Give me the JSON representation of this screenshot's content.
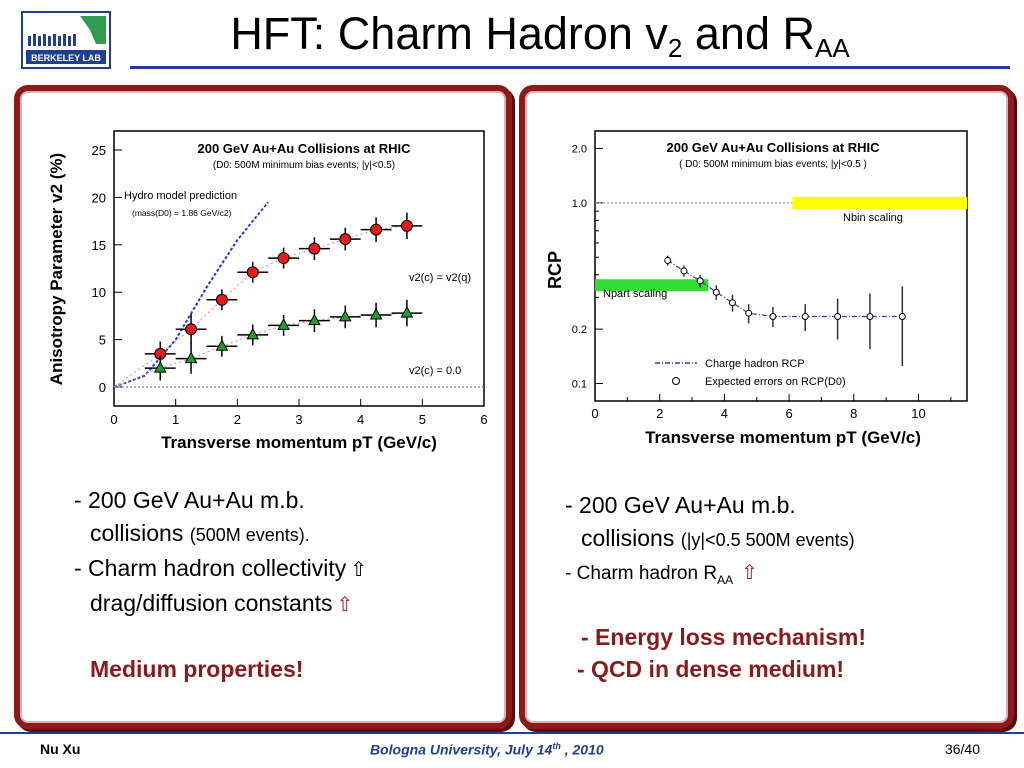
{
  "header": {
    "logo_text": "BERKELEY LAB",
    "title_main": "HFT: Charm Hadron v",
    "title_sub1": "2",
    "title_mid": " and R",
    "title_sub2": "AA"
  },
  "left_panel": {
    "chart_data": {
      "type": "scatter",
      "title": "200 GeV Au+Au Collisions at RHIC",
      "subtitle": "(D0: 500M minimum bias events; |y|<0.5)",
      "xlabel": "Transverse momentum pT (GeV/c)",
      "ylabel": "Anisotropy Parameter v2 (%)",
      "xlim": [
        0,
        6
      ],
      "ylim": [
        -2,
        27
      ],
      "xticks": [
        "0",
        "1",
        "2",
        "3",
        "4",
        "5",
        "6"
      ],
      "yticks": [
        "0",
        "5",
        "10",
        "15",
        "20",
        "25"
      ],
      "annotations": [
        "Hydro model prediction",
        "(mass(D0) = 1.86 GeV/c2)",
        "v2(c) = v2(q)",
        "v2(c) = 0.0"
      ],
      "series": [
        {
          "name": "v2(c) = v2(q)",
          "marker": "circle",
          "color": "#e41a1c",
          "x": [
            0.75,
            1.25,
            1.75,
            2.25,
            2.75,
            3.25,
            3.75,
            4.25,
            4.75
          ],
          "y": [
            3.5,
            6.1,
            9.2,
            12.1,
            13.6,
            14.6,
            15.6,
            16.6,
            17.0
          ],
          "err": [
            1.3,
            1.6,
            1.1,
            1.1,
            1.1,
            1.2,
            1.2,
            1.3,
            1.4
          ]
        },
        {
          "name": "v2(c) = 0.0",
          "marker": "triangle",
          "color": "#1aa12c",
          "x": [
            0.75,
            1.25,
            1.75,
            2.25,
            2.75,
            3.25,
            3.75,
            4.25,
            4.75
          ],
          "y": [
            2.0,
            3.0,
            4.3,
            5.5,
            6.5,
            7.0,
            7.4,
            7.6,
            7.8
          ],
          "err": [
            1.3,
            1.6,
            1.1,
            1.1,
            1.1,
            1.2,
            1.2,
            1.3,
            1.4
          ]
        }
      ],
      "hydro_curve": {
        "x": [
          0,
          0.5,
          1.0,
          1.5,
          2.0,
          2.5
        ],
        "y": [
          0,
          1.2,
          5.0,
          10.5,
          15.5,
          19.5
        ]
      }
    },
    "bullet1_a": "- 200 GeV Au+Au m.b.",
    "bullet1_b": "collisions",
    "bullet1_small": "(500M events).",
    "bullet2_a": "- Charm hadron collectivity",
    "bullet2_b": "drag/diffusion constants",
    "emphasis": "Medium properties!"
  },
  "right_panel": {
    "chart_data": {
      "type": "scatter",
      "title": "200 GeV Au+Au Collisions at RHIC",
      "subtitle": "( D0: 500M minimum bias events; |y|<0.5 )",
      "xlabel": "Transverse momentum pT (GeV/c)",
      "ylabel": "RCP",
      "scale_y": "log",
      "xlim": [
        0,
        11.5
      ],
      "ylim": [
        0.08,
        2.5
      ],
      "xticks": [
        "0",
        "2",
        "4",
        "6",
        "8",
        "10"
      ],
      "yticks": [
        "0.1",
        "0.2",
        "1.0",
        "2.0"
      ],
      "bands": [
        {
          "label": "Nbin scaling",
          "color": "#ffff00",
          "x": [
            6.1,
            11.5
          ],
          "y": 1.0
        },
        {
          "label": "Npart scaling",
          "color": "#33dd33",
          "x": [
            0,
            3.5
          ],
          "y": 0.35
        }
      ],
      "legend": [
        "Charge hadron RCP",
        "Expected errors on RCP(D0)"
      ],
      "series": [
        {
          "name": "Expected errors on RCP(D0)",
          "marker": "open-circle",
          "x": [
            2.25,
            2.75,
            3.25,
            3.75,
            4.25,
            4.75,
            5.5,
            6.5,
            7.5,
            8.5,
            9.5
          ],
          "y": [
            0.48,
            0.42,
            0.37,
            0.32,
            0.28,
            0.245,
            0.235,
            0.235,
            0.235,
            0.235,
            0.235
          ],
          "err": [
            0.03,
            0.03,
            0.03,
            0.03,
            0.03,
            0.03,
            0.03,
            0.04,
            0.06,
            0.08,
            0.11
          ]
        },
        {
          "name": "Charge hadron RCP",
          "marker": "line",
          "x": [
            2.25,
            2.75,
            3.25,
            3.75,
            4.25,
            4.75,
            5.5,
            6.5,
            7.5,
            8.5,
            9.5
          ],
          "y": [
            0.48,
            0.42,
            0.37,
            0.32,
            0.28,
            0.245,
            0.235,
            0.235,
            0.235,
            0.235,
            0.235
          ]
        }
      ]
    },
    "bullet1_a": "- 200 GeV Au+Au m.b.",
    "bullet1_b": "collisions",
    "bullet1_small": "(|y|<0.5 500M events)",
    "bullet2_a": "- Charm hadron R",
    "bullet2_sub": "AA",
    "emphasis1": "- Energy loss mechanism!",
    "emphasis2": "- QCD in dense medium!"
  },
  "footer": {
    "author": "Nu Xu",
    "venue_a": "Bologna University, July 14",
    "venue_sup": "th",
    "venue_b": " , 2010",
    "page": "36/40"
  },
  "colors": {
    "accent": "#1f3f91",
    "panel_border": "#8b1a1a",
    "emphasis": "#8b1a1a"
  }
}
